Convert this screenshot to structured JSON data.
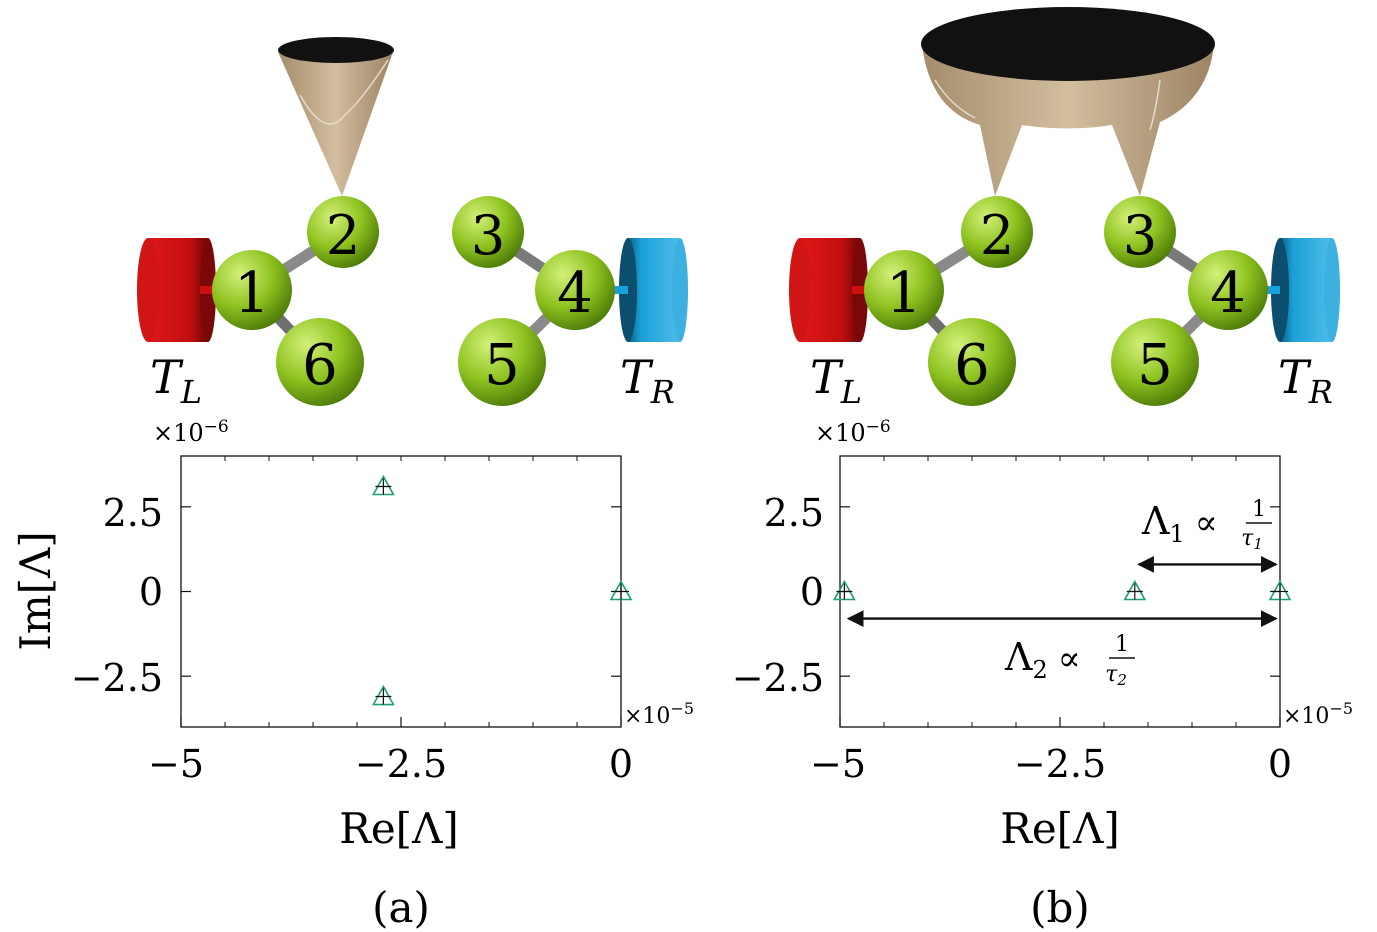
{
  "panels": [
    {
      "caption": "(a)",
      "left_terminal": "T",
      "left_terminal_sub": "L",
      "right_terminal": "T",
      "right_terminal_sub": "R",
      "sites": [
        "1",
        "2",
        "3",
        "4",
        "5",
        "6"
      ],
      "probe_sites": [
        "2"
      ],
      "colors": {
        "sphere": "#8dc21f",
        "left_lead": "#cc1010",
        "right_lead": "#1aa0d8",
        "tip": "#bfa889",
        "bond": "#9a9a9a"
      }
    },
    {
      "caption": "(b)",
      "left_terminal": "T",
      "left_terminal_sub": "L",
      "right_terminal": "T",
      "right_terminal_sub": "R",
      "sites": [
        "1",
        "2",
        "3",
        "4",
        "5",
        "6"
      ],
      "probe_sites": [
        "2",
        "3"
      ],
      "colors": {
        "sphere": "#8dc21f",
        "left_lead": "#cc1010",
        "right_lead": "#1aa0d8",
        "tip": "#bfa889",
        "bond": "#9a9a9a"
      }
    }
  ],
  "chart_data": [
    {
      "type": "scatter",
      "panel": "(a)",
      "xlabel": "Re[Λ]",
      "ylabel": "Im[Λ]",
      "xlim": [
        -5,
        0
      ],
      "ylim": [
        -4,
        4
      ],
      "xticks": [
        "−5",
        "−2.5",
        "0"
      ],
      "yticks": [
        "2.5",
        "0",
        "−2.5"
      ],
      "x_multiplier": "×10",
      "x_multiplier_exp": "−5",
      "y_multiplier": "×10",
      "y_multiplier_exp": "−6",
      "marker_color": "#1f9e6e",
      "points": [
        {
          "x": -2.7,
          "y": 3.1
        },
        {
          "x": -2.7,
          "y": -3.1
        },
        {
          "x": 0,
          "y": 0
        }
      ]
    },
    {
      "type": "scatter",
      "panel": "(b)",
      "xlabel": "Re[Λ]",
      "ylabel": "",
      "xlim": [
        -5,
        0
      ],
      "ylim": [
        -4,
        4
      ],
      "xticks": [
        "−5",
        "−2.5",
        "0"
      ],
      "yticks": [
        "2.5",
        "0",
        "−2.5"
      ],
      "x_multiplier": "×10",
      "x_multiplier_exp": "−5",
      "y_multiplier": "×10",
      "y_multiplier_exp": "−6",
      "marker_color": "#1f9e6e",
      "points": [
        {
          "x": -4.95,
          "y": 0
        },
        {
          "x": -1.65,
          "y": 0
        },
        {
          "x": 0,
          "y": 0
        }
      ],
      "annotations": [
        {
          "label": "Λ",
          "label_sub": "1",
          "relation": "∝",
          "num": "1",
          "den": "τ",
          "den_sub": "1",
          "from": -1.65,
          "to": 0,
          "y": 0.8
        },
        {
          "label": "Λ",
          "label_sub": "2",
          "relation": "∝",
          "num": "1",
          "den": "τ",
          "den_sub": "2",
          "from": -4.95,
          "to": 0,
          "y": -0.8
        }
      ]
    }
  ]
}
